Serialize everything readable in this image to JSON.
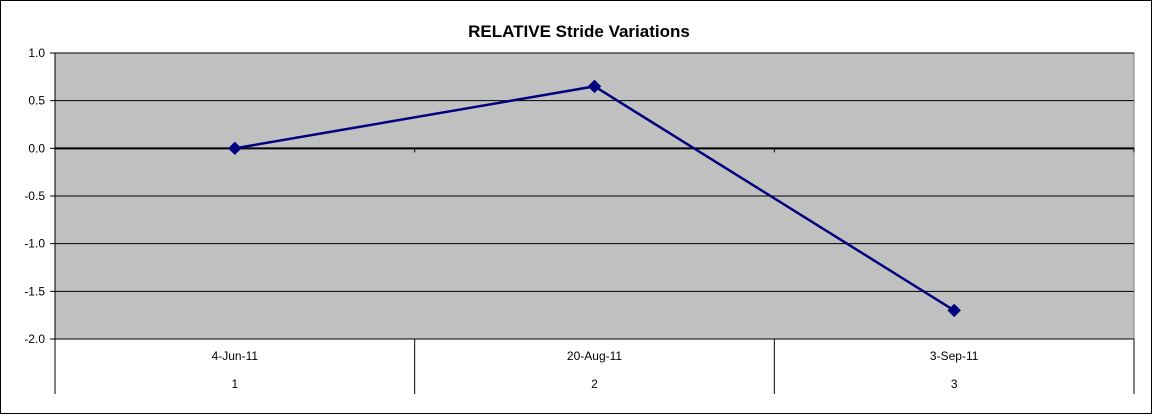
{
  "chart_data": {
    "type": "line",
    "title": "RELATIVE Stride Variations",
    "categories": [
      {
        "date": "4-Jun-11",
        "index": "1"
      },
      {
        "date": "20-Aug-11",
        "index": "2"
      },
      {
        "date": "3-Sep-11",
        "index": "3"
      }
    ],
    "series": [
      {
        "values": [
          0.0,
          0.65,
          -1.7
        ],
        "color": "#000080",
        "marker": "diamond"
      }
    ],
    "ylim": [
      -2.0,
      1.0
    ],
    "yticks": [
      "1.0",
      "0.5",
      "0.0",
      "-0.5",
      "-1.0",
      "-1.5",
      "-2.0"
    ],
    "ytick_values": [
      1.0,
      0.5,
      0.0,
      -0.5,
      -1.0,
      -1.5,
      -2.0
    ],
    "grid": true,
    "plot_background": "#c0c0c0",
    "legend": "none"
  }
}
